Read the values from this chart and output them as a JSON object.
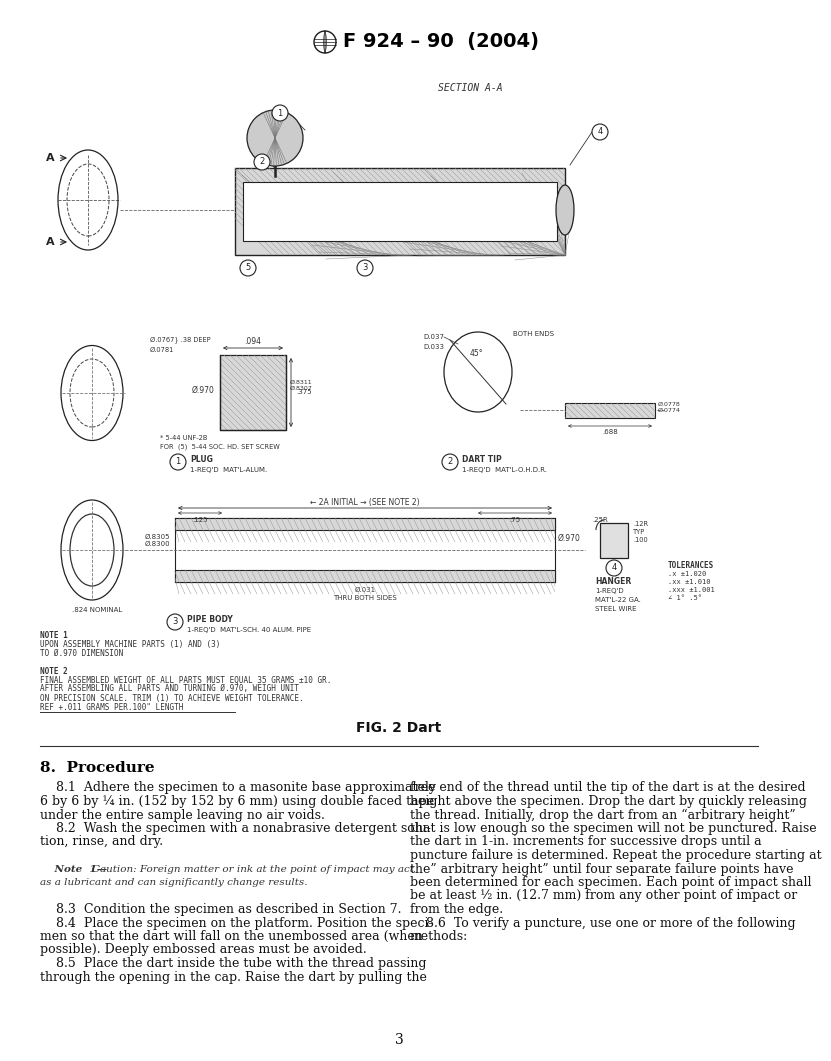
{
  "page_bg": "#ffffff",
  "header_title": "F 924 – 90  (2004)",
  "fig_caption": "FIG. 2 Dart",
  "page_number": "3",
  "section_header": "8.  Procedure",
  "section_a_label": "SECTION A-A",
  "left_col_text": [
    "    8.1  Adhere the specimen to a masonite base approximately",
    "6 by 6 by ¼ in. (152 by 152 by 6 mm) using double faced tape",
    "under the entire sample leaving no air voids.",
    "    8.2  Wash the specimen with a nonabrasive detergent solu-",
    "tion, rinse, and dry.",
    "",
    "    Note  1—Caution: Foreign matter or ink at the point of impact may act",
    "as a lubricant and can significantly change results.",
    "",
    "    8.3  Condition the specimen as described in Section 7.",
    "    8.4  Place the specimen on the platform. Position the speci-",
    "men so that the dart will fall on the unembossed area (when",
    "possible). Deeply embossed areas must be avoided.",
    "    8.5  Place the dart inside the tube with the thread passing",
    "through the opening in the cap. Raise the dart by pulling the"
  ],
  "right_col_text": [
    "free end of the thread until the tip of the dart is at the desired",
    "height above the specimen. Drop the dart by quickly releasing",
    "the thread. Initially, drop the dart from an “arbitrary height”",
    "that is low enough so the specimen will not be punctured. Raise",
    "the dart in 1-in. increments for successive drops until a",
    "puncture failure is determined. Repeat the procedure starting at",
    "the” arbitrary height” until four separate failure points have",
    "been determined for each specimen. Each point of impact shall",
    "be at least ½ in. (12.7 mm) from any other point of impact or",
    "from the edge.",
    "    8.6  To verify a puncture, use one or more of the following",
    "methods:"
  ],
  "note1_bold": "Note  1—",
  "note1_rest": "Caution: Foreign matter or ink at the point of impact may act",
  "note1_line2": "as a lubricant and can significantly change results."
}
